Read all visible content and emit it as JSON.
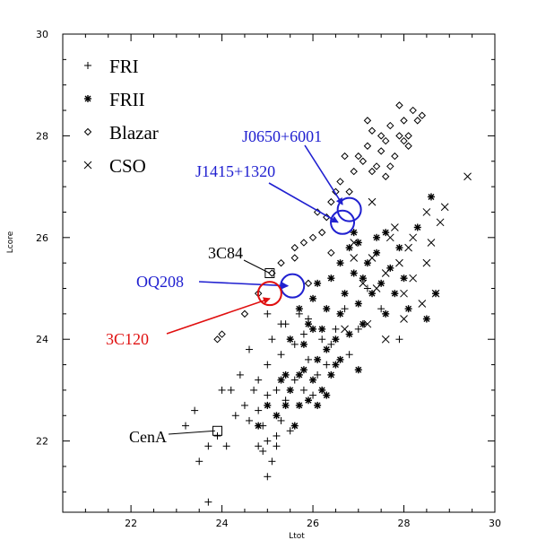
{
  "chart_data": {
    "type": "scatter",
    "title": "",
    "xlabel": "Ltot",
    "ylabel": "Lcore",
    "xlim": [
      20.5,
      30
    ],
    "ylim": [
      20.6,
      30
    ],
    "x_ticks": [
      "22",
      "24",
      "26",
      "28",
      "30"
    ],
    "y_ticks": [
      "22",
      "24",
      "26",
      "28",
      "30"
    ],
    "legend_position": "top-left",
    "legend": [
      {
        "label": "FRI",
        "marker": "plus"
      },
      {
        "label": "FRII",
        "marker": "asterisk"
      },
      {
        "label": "Blazar",
        "marker": "diamond"
      },
      {
        "label": "CSO",
        "marker": "cross"
      }
    ],
    "series": [
      {
        "name": "FRI",
        "marker": "plus",
        "points": [
          [
            23.4,
            22.6
          ],
          [
            23.2,
            22.3
          ],
          [
            23.5,
            21.6
          ],
          [
            23.7,
            20.8
          ],
          [
            23.7,
            21.9
          ],
          [
            23.9,
            22.1
          ],
          [
            24.0,
            23.0
          ],
          [
            24.2,
            23.0
          ],
          [
            24.4,
            23.3
          ],
          [
            24.5,
            22.7
          ],
          [
            24.6,
            22.4
          ],
          [
            24.6,
            23.8
          ],
          [
            24.8,
            22.6
          ],
          [
            24.8,
            21.9
          ],
          [
            24.8,
            23.2
          ],
          [
            24.9,
            21.8
          ],
          [
            25.0,
            22.0
          ],
          [
            25.0,
            21.3
          ],
          [
            25.0,
            22.9
          ],
          [
            25.0,
            23.5
          ],
          [
            25.1,
            24.0
          ],
          [
            25.1,
            21.6
          ],
          [
            25.2,
            22.1
          ],
          [
            25.3,
            22.4
          ],
          [
            25.3,
            23.7
          ],
          [
            25.4,
            22.8
          ],
          [
            25.4,
            24.3
          ],
          [
            25.5,
            22.2
          ],
          [
            25.6,
            23.2
          ],
          [
            25.7,
            24.5
          ],
          [
            25.8,
            24.1
          ],
          [
            25.8,
            23.0
          ],
          [
            25.9,
            23.6
          ],
          [
            25.9,
            24.4
          ],
          [
            26.0,
            22.9
          ],
          [
            26.1,
            23.3
          ],
          [
            26.2,
            24.0
          ],
          [
            26.3,
            23.5
          ],
          [
            26.4,
            23.9
          ],
          [
            26.5,
            24.2
          ],
          [
            26.7,
            24.6
          ],
          [
            26.8,
            23.7
          ],
          [
            27.0,
            24.2
          ],
          [
            27.2,
            25.0
          ],
          [
            27.5,
            24.6
          ],
          [
            27.9,
            24.0
          ],
          [
            24.3,
            22.5
          ],
          [
            24.7,
            23.0
          ],
          [
            24.9,
            22.3
          ],
          [
            25.2,
            23.0
          ],
          [
            25.6,
            23.9
          ],
          [
            24.1,
            21.9
          ],
          [
            25.0,
            24.5
          ],
          [
            25.3,
            24.3
          ],
          [
            25.2,
            21.9
          ]
        ]
      },
      {
        "name": "FRII",
        "marker": "asterisk",
        "points": [
          [
            25.0,
            22.7
          ],
          [
            25.2,
            22.5
          ],
          [
            25.3,
            23.2
          ],
          [
            25.4,
            23.3
          ],
          [
            25.5,
            23.0
          ],
          [
            25.5,
            24.0
          ],
          [
            25.6,
            22.3
          ],
          [
            25.7,
            22.7
          ],
          [
            25.7,
            24.6
          ],
          [
            25.8,
            23.4
          ],
          [
            25.8,
            23.9
          ],
          [
            25.9,
            22.8
          ],
          [
            25.9,
            24.3
          ],
          [
            26.0,
            23.2
          ],
          [
            26.0,
            24.8
          ],
          [
            26.1,
            23.6
          ],
          [
            26.1,
            22.7
          ],
          [
            26.2,
            24.2
          ],
          [
            26.2,
            23.0
          ],
          [
            26.3,
            24.6
          ],
          [
            26.3,
            23.8
          ],
          [
            26.4,
            23.3
          ],
          [
            26.4,
            25.2
          ],
          [
            26.5,
            24.0
          ],
          [
            26.5,
            23.5
          ],
          [
            26.6,
            24.5
          ],
          [
            26.6,
            25.5
          ],
          [
            26.7,
            24.9
          ],
          [
            26.8,
            24.1
          ],
          [
            26.8,
            25.8
          ],
          [
            26.9,
            25.3
          ],
          [
            27.0,
            24.7
          ],
          [
            27.0,
            25.9
          ],
          [
            27.1,
            24.3
          ],
          [
            27.2,
            25.5
          ],
          [
            27.3,
            24.9
          ],
          [
            27.4,
            25.7
          ],
          [
            27.5,
            25.1
          ],
          [
            27.6,
            24.5
          ],
          [
            27.7,
            25.4
          ],
          [
            27.8,
            24.9
          ],
          [
            27.9,
            25.8
          ],
          [
            28.0,
            25.2
          ],
          [
            28.1,
            24.6
          ],
          [
            28.3,
            26.2
          ],
          [
            28.5,
            24.4
          ],
          [
            28.6,
            26.8
          ],
          [
            28.7,
            24.9
          ],
          [
            26.3,
            22.9
          ],
          [
            26.6,
            23.6
          ],
          [
            27.0,
            23.4
          ],
          [
            27.1,
            25.2
          ],
          [
            26.1,
            25.1
          ],
          [
            27.6,
            26.1
          ],
          [
            27.4,
            26.0
          ],
          [
            26.9,
            26.1
          ],
          [
            24.8,
            22.3
          ],
          [
            25.4,
            22.7
          ],
          [
            26.0,
            24.2
          ],
          [
            25.7,
            23.3
          ]
        ]
      },
      {
        "name": "Blazar",
        "marker": "diamond",
        "points": [
          [
            23.9,
            24.0
          ],
          [
            24.0,
            24.1
          ],
          [
            24.5,
            24.5
          ],
          [
            24.8,
            24.9
          ],
          [
            25.1,
            25.3
          ],
          [
            25.3,
            25.5
          ],
          [
            25.6,
            25.8
          ],
          [
            25.8,
            25.9
          ],
          [
            26.0,
            26.0
          ],
          [
            26.1,
            26.5
          ],
          [
            26.2,
            26.1
          ],
          [
            26.3,
            26.4
          ],
          [
            26.4,
            25.7
          ],
          [
            26.5,
            26.9
          ],
          [
            26.6,
            27.1
          ],
          [
            26.7,
            27.6
          ],
          [
            26.8,
            26.9
          ],
          [
            26.9,
            27.3
          ],
          [
            27.0,
            27.6
          ],
          [
            27.1,
            27.5
          ],
          [
            27.2,
            27.8
          ],
          [
            27.3,
            28.1
          ],
          [
            27.4,
            27.4
          ],
          [
            27.5,
            27.7
          ],
          [
            27.6,
            27.9
          ],
          [
            27.7,
            28.2
          ],
          [
            27.8,
            27.6
          ],
          [
            27.9,
            28.0
          ],
          [
            28.0,
            28.3
          ],
          [
            28.1,
            27.8
          ],
          [
            28.2,
            28.5
          ],
          [
            28.3,
            28.3
          ],
          [
            28.4,
            28.4
          ],
          [
            27.3,
            27.3
          ],
          [
            27.9,
            28.6
          ],
          [
            28.0,
            27.9
          ],
          [
            27.5,
            28.0
          ],
          [
            27.2,
            28.3
          ],
          [
            26.4,
            26.7
          ],
          [
            25.6,
            25.6
          ],
          [
            27.6,
            27.2
          ],
          [
            25.9,
            25.1
          ],
          [
            28.1,
            28.0
          ],
          [
            27.7,
            27.4
          ]
        ]
      },
      {
        "name": "CSO",
        "marker": "cross",
        "points": [
          [
            26.9,
            25.9
          ],
          [
            27.1,
            25.1
          ],
          [
            27.3,
            25.6
          ],
          [
            27.6,
            25.3
          ],
          [
            27.7,
            26.0
          ],
          [
            27.9,
            25.5
          ],
          [
            28.0,
            24.9
          ],
          [
            28.1,
            25.8
          ],
          [
            28.2,
            25.2
          ],
          [
            28.4,
            24.7
          ],
          [
            28.5,
            25.5
          ],
          [
            28.7,
            24.9
          ],
          [
            28.8,
            26.3
          ],
          [
            28.5,
            26.5
          ],
          [
            28.9,
            26.6
          ],
          [
            27.8,
            26.2
          ],
          [
            27.4,
            25.0
          ],
          [
            28.0,
            24.4
          ],
          [
            27.6,
            24.0
          ],
          [
            27.2,
            24.3
          ],
          [
            26.7,
            24.2
          ],
          [
            26.9,
            25.6
          ],
          [
            29.4,
            27.2
          ],
          [
            28.2,
            26.0
          ],
          [
            27.3,
            26.7
          ],
          [
            28.6,
            25.9
          ]
        ]
      },
      {
        "name": "",
        "marker": "square",
        "points": [
          [
            25.05,
            25.3
          ],
          [
            23.9,
            22.2
          ]
        ]
      }
    ],
    "annotations": [
      {
        "text": "3C84",
        "color": "#000000",
        "arrow_to": [
          25.05,
          25.3
        ]
      },
      {
        "text": "OQ208",
        "color": "#2020d0",
        "arrow_to": [
          25.45,
          25.05
        ]
      },
      {
        "text": "3C120",
        "color": "#e01010",
        "arrow_to": [
          25.05,
          24.8
        ]
      },
      {
        "text": "J1415+1320",
        "color": "#2020d0",
        "arrow_to": [
          26.55,
          26.3
        ]
      },
      {
        "text": "J0650+6001",
        "color": "#2020d0",
        "arrow_to": [
          26.65,
          26.65
        ]
      },
      {
        "text": "CenA",
        "color": "#000000",
        "arrow_to": [
          23.85,
          22.2
        ]
      }
    ],
    "circles": [
      {
        "center": [
          25.55,
          25.05
        ],
        "color": "#2020d0"
      },
      {
        "center": [
          25.05,
          24.9
        ],
        "color": "#e01010"
      },
      {
        "center": [
          26.65,
          26.3
        ],
        "color": "#2020d0"
      },
      {
        "center": [
          26.8,
          26.55
        ],
        "color": "#2020d0"
      }
    ]
  }
}
